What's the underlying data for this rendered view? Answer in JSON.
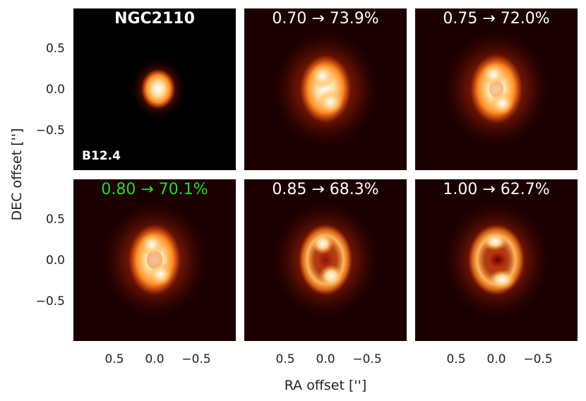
{
  "figure": {
    "xlabel": "RA offset ['']",
    "ylabel": "DEC offset ['']",
    "xticks": [
      "0.5",
      "0.0",
      "−0.5"
    ],
    "yticks": [
      "0.5",
      "0.0",
      "−0.5"
    ],
    "highlight_color": "#22dd22",
    "colormap": "hot (black → dark red → orange → white)"
  },
  "panels": [
    {
      "title": "NGC2110",
      "band": "B12.4",
      "highlight": false,
      "morphology": "compact point-like core"
    },
    {
      "title": "0.70 → 73.9%",
      "highlight": false,
      "morphology": "elongated, two bright lobes"
    },
    {
      "title": "0.75 → 72.0%",
      "highlight": false,
      "morphology": "elongated, two bright lobes"
    },
    {
      "title": "0.80 → 70.1%",
      "highlight": true,
      "morphology": "elongated, two bright lobes"
    },
    {
      "title": "0.85 → 68.3%",
      "highlight": false,
      "morphology": "ring with faint center"
    },
    {
      "title": "1.00 → 62.7%",
      "highlight": false,
      "morphology": "ring with dark center"
    }
  ]
}
